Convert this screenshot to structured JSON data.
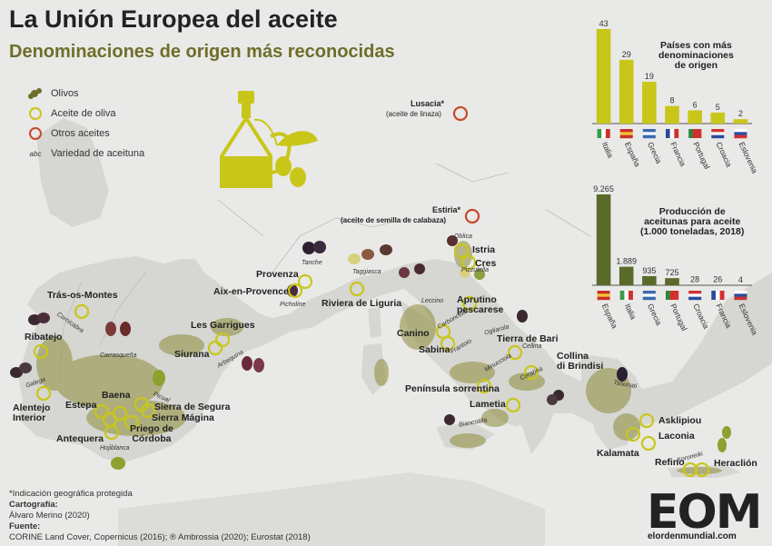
{
  "title": "La Unión Europea del aceite",
  "subtitle": "Denominaciones de origen más reconocidas",
  "legend": [
    {
      "icon": "olive-tree-icon",
      "label": "Olivos"
    },
    {
      "icon": "yellow-ring-icon",
      "label": "Aceite de oliva"
    },
    {
      "icon": "red-ring-icon",
      "label": "Otros aceites"
    },
    {
      "icon": "abc-icon",
      "label": "Variedad de aceituna"
    }
  ],
  "places": {
    "lusacia": "Lusacia*",
    "lusacia_sub": "(aceite de linaza)",
    "estiria": "Estiria*",
    "estiria_sub": "(aceite de semilla de calabaza)",
    "tras_os_montes": "Trás-os-Montes",
    "ribatejo": "Ribatejo",
    "alentejo": "Alentejo\nInterior",
    "estepa": "Estepa",
    "baena": "Baena",
    "antequera": "Antequera",
    "priego": "Priego de\nCórdoba",
    "sierra_segura": "Sierra de Segura",
    "sierra_magina": "Sierra Mágina",
    "siurana": "Siurana",
    "les_garrigues": "Les Garrigues",
    "provenza": "Provenza",
    "aix": "Aix-en-Provence",
    "riviera": "Riviera de Liguria",
    "istria": "Istria",
    "cres": "Cres",
    "aprutino": "Aprutino\npescarese",
    "canino": "Canino",
    "sabina": "Sabina",
    "tierra_bari": "Tierra de Bari",
    "collina": "Collina\ndi Brindisi",
    "peninsula": "Península sorrentina",
    "lametia": "Lametia",
    "asklipiou": "Asklipiou",
    "laconia": "Laconia",
    "kalamata": "Kalamata",
    "refino": "Refino",
    "heraclion": "Heraclión"
  },
  "varieties": {
    "cornicabra": "Cornicabra",
    "carrasquena": "Carrasqueña",
    "galega": "Galega",
    "picual": "Picual",
    "hojiblanca": "Hojiblanca",
    "arbequina": "Arbequina",
    "tanche": "Tanche",
    "picholine": "Picholine",
    "taggiasca": "Taggiasca",
    "oblica": "Oblica",
    "pizzutella": "Pizzutella",
    "leccino": "Leccino",
    "carboncella": "Carboncella",
    "frantoio": "Frantoio",
    "coratina": "Coratina",
    "ogliarola": "Ogliarola",
    "minucciola": "Minucciola",
    "cellina": "Cellina",
    "biancolilla": "Biancolilla",
    "koroneiki": "Koroneiki",
    "tsounati": "Tsounati"
  },
  "footer": {
    "note": "*Indicación geográfica protegida",
    "cartography_label": "Cartografía:",
    "cartography": "Álvaro Merino (2020)",
    "sources_label": "Fuente:",
    "sources": "CORINE Land Cover, Copernicus (2016); ® Ambrossia (2020); Eurostat (2018)"
  },
  "brand": {
    "logo": "EOM",
    "url": "elordenmundial.com"
  },
  "colors": {
    "bar": "#c9c61a",
    "bar_dark": "#5a6a2a",
    "ring_yellow": "#c9c61a",
    "ring_red": "#c8492d",
    "land": "#d6d6d3",
    "sea": "#e9e9e7"
  },
  "chart_data": [
    {
      "type": "bar",
      "title": "Países con más\ndenominaciones\nde origen",
      "categories": [
        "Italia",
        "España",
        "Grecia",
        "Francia",
        "Portugal",
        "Croacia",
        "Eslovenia"
      ],
      "flags": [
        "it-flag-icon",
        "es-flag-icon",
        "gr-flag-icon",
        "fr-flag-icon",
        "pt-flag-icon",
        "hr-flag-icon",
        "si-flag-icon"
      ],
      "values": [
        43,
        29,
        19,
        8,
        6,
        5,
        2
      ],
      "value_labels": [
        "43",
        "29",
        "19",
        "8",
        "6",
        "5",
        "2"
      ],
      "ylim": [
        0,
        43
      ]
    },
    {
      "type": "bar",
      "title": "Producción de\naceitunas para aceite\n(1.000 toneladas, 2018)",
      "categories": [
        "España",
        "Italia",
        "Grecia",
        "Portugal",
        "Croacia",
        "Francia",
        "Eslovenia"
      ],
      "flags": [
        "es-flag-icon",
        "it-flag-icon",
        "gr-flag-icon",
        "pt-flag-icon",
        "hr-flag-icon",
        "fr-flag-icon",
        "si-flag-icon"
      ],
      "values": [
        9265,
        1889,
        935,
        725,
        28,
        26,
        4
      ],
      "value_labels": [
        "9.265",
        "1.889",
        "935",
        "725",
        "28",
        "26",
        "4"
      ],
      "ylim": [
        0,
        9265
      ]
    }
  ]
}
